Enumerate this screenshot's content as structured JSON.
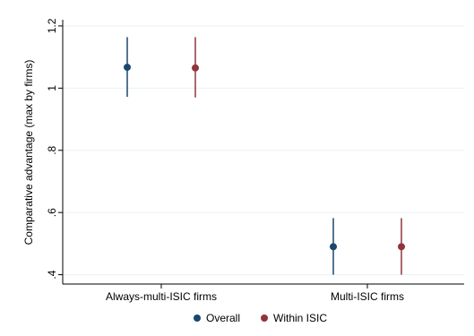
{
  "chart_data": {
    "type": "scatter",
    "title": "",
    "xlabel": "",
    "ylabel": "Comparative advantage (max by firms)",
    "categories": [
      "Always-multi-ISIC firms",
      "Multi-ISIC firms"
    ],
    "ylim": [
      0.37,
      1.22
    ],
    "y_ticks": [
      0.4,
      0.6,
      0.8,
      1,
      1.2
    ],
    "y_tick_labels": [
      ".4",
      ".6",
      ".8",
      "1",
      "1.2"
    ],
    "grid": true,
    "legend_position": "bottom",
    "series": [
      {
        "name": "Overall",
        "color": "#1a476f",
        "values": [
          1.067,
          0.49
        ],
        "ci_low": [
          0.972,
          0.4
        ],
        "ci_high": [
          1.164,
          0.582
        ]
      },
      {
        "name": "Within ISIC",
        "color": "#90353b",
        "values": [
          1.065,
          0.49
        ],
        "ci_low": [
          0.97,
          0.4
        ],
        "ci_high": [
          1.164,
          0.582
        ]
      }
    ]
  }
}
